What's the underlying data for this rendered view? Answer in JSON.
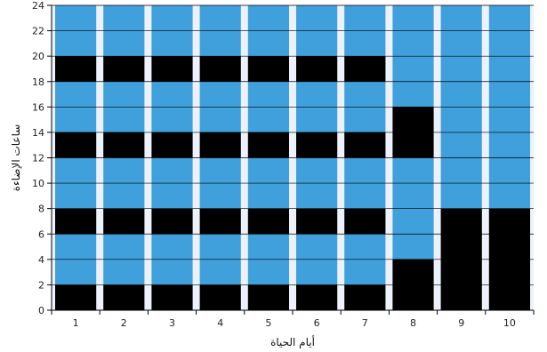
{
  "chart_data": {
    "type": "bar",
    "stacked": true,
    "xlabel": "أيام الحياة",
    "ylabel": "ساعات الإضاءة",
    "categories": [
      "1",
      "2",
      "3",
      "4",
      "5",
      "6",
      "7",
      "8",
      "9",
      "10"
    ],
    "ylim": [
      0,
      24
    ],
    "yticks": [
      0,
      2,
      4,
      6,
      8,
      10,
      12,
      14,
      16,
      18,
      20,
      22,
      24
    ],
    "grid": true,
    "legend": "none",
    "colors": {
      "light": "#3fa0db",
      "dark": "#000000",
      "background": "#edf1fb"
    },
    "columns": [
      {
        "day": "1",
        "segments": [
          [
            "dark",
            0,
            2
          ],
          [
            "light",
            2,
            6
          ],
          [
            "dark",
            6,
            8
          ],
          [
            "light",
            8,
            12
          ],
          [
            "dark",
            12,
            14
          ],
          [
            "light",
            14,
            18
          ],
          [
            "dark",
            18,
            20
          ],
          [
            "light",
            20,
            24
          ]
        ]
      },
      {
        "day": "2",
        "segments": [
          [
            "dark",
            0,
            2
          ],
          [
            "light",
            2,
            6
          ],
          [
            "dark",
            6,
            8
          ],
          [
            "light",
            8,
            12
          ],
          [
            "dark",
            12,
            14
          ],
          [
            "light",
            14,
            18
          ],
          [
            "dark",
            18,
            20
          ],
          [
            "light",
            20,
            24
          ]
        ]
      },
      {
        "day": "3",
        "segments": [
          [
            "dark",
            0,
            2
          ],
          [
            "light",
            2,
            6
          ],
          [
            "dark",
            6,
            8
          ],
          [
            "light",
            8,
            12
          ],
          [
            "dark",
            12,
            14
          ],
          [
            "light",
            14,
            18
          ],
          [
            "dark",
            18,
            20
          ],
          [
            "light",
            20,
            24
          ]
        ]
      },
      {
        "day": "4",
        "segments": [
          [
            "dark",
            0,
            2
          ],
          [
            "light",
            2,
            6
          ],
          [
            "dark",
            6,
            8
          ],
          [
            "light",
            8,
            12
          ],
          [
            "dark",
            12,
            14
          ],
          [
            "light",
            14,
            18
          ],
          [
            "dark",
            18,
            20
          ],
          [
            "light",
            20,
            24
          ]
        ]
      },
      {
        "day": "5",
        "segments": [
          [
            "dark",
            0,
            2
          ],
          [
            "light",
            2,
            6
          ],
          [
            "dark",
            6,
            8
          ],
          [
            "light",
            8,
            12
          ],
          [
            "dark",
            12,
            14
          ],
          [
            "light",
            14,
            18
          ],
          [
            "dark",
            18,
            20
          ],
          [
            "light",
            20,
            24
          ]
        ]
      },
      {
        "day": "6",
        "segments": [
          [
            "dark",
            0,
            2
          ],
          [
            "light",
            2,
            6
          ],
          [
            "dark",
            6,
            8
          ],
          [
            "light",
            8,
            12
          ],
          [
            "dark",
            12,
            14
          ],
          [
            "light",
            14,
            18
          ],
          [
            "dark",
            18,
            20
          ],
          [
            "light",
            20,
            24
          ]
        ]
      },
      {
        "day": "7",
        "segments": [
          [
            "dark",
            0,
            2
          ],
          [
            "light",
            2,
            6
          ],
          [
            "dark",
            6,
            8
          ],
          [
            "light",
            8,
            12
          ],
          [
            "dark",
            12,
            14
          ],
          [
            "light",
            14,
            18
          ],
          [
            "dark",
            18,
            20
          ],
          [
            "light",
            20,
            24
          ]
        ]
      },
      {
        "day": "8",
        "segments": [
          [
            "dark",
            0,
            4
          ],
          [
            "light",
            4,
            12
          ],
          [
            "dark",
            12,
            16
          ],
          [
            "light",
            16,
            24
          ]
        ]
      },
      {
        "day": "9",
        "segments": [
          [
            "dark",
            0,
            8
          ],
          [
            "light",
            8,
            24
          ]
        ]
      },
      {
        "day": "10",
        "segments": [
          [
            "dark",
            0,
            8
          ],
          [
            "light",
            8,
            24
          ]
        ]
      }
    ]
  }
}
